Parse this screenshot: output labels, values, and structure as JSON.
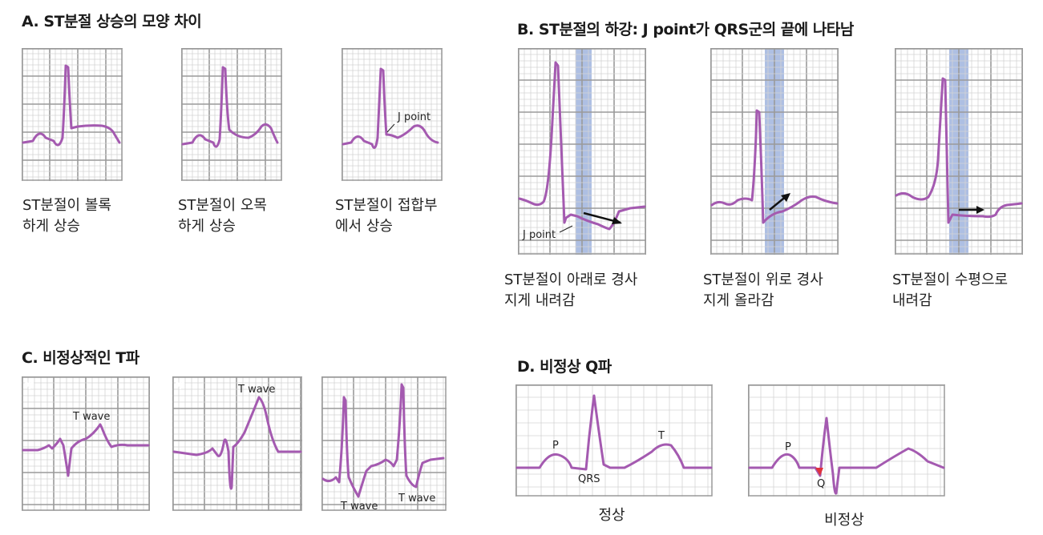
{
  "sectionA": {
    "title": "A. ST분절 상승의 모양 차이",
    "captions": [
      {
        "line1": "ST분절이 볼록",
        "line2": "하게 상승"
      },
      {
        "line1": "ST분절이 오목",
        "line2": "하게 상승"
      },
      {
        "line1": "ST분절이 접합부",
        "line2": "에서 상승"
      }
    ],
    "j_point_label": "J point"
  },
  "sectionB": {
    "title": "B. ST분절의 하강: J point가 QRS군의 끝에 나타남",
    "captions": [
      {
        "line1": "ST분절이 아래로 경사",
        "line2": "지게 내려감"
      },
      {
        "line1": "ST분절이 위로 경사",
        "line2": "지게 올라감"
      },
      {
        "line1": "ST분절이 수평으로",
        "line2": "내려감"
      }
    ],
    "j_point_label": "J point"
  },
  "sectionC": {
    "title": "C. 비정상적인 T파",
    "labels": [
      "T wave",
      "T wave",
      "T wave",
      "T wave"
    ]
  },
  "sectionD": {
    "title": "D. 비정상 Q파",
    "normal": {
      "caption": "정상",
      "p": "P",
      "qrs": "QRS",
      "t": "T"
    },
    "abnormal": {
      "caption": "비정상",
      "p": "P",
      "q": "Q"
    }
  },
  "colors": {
    "trace": "#a45ab0",
    "grid_major": "#9a9a9a",
    "grid_minor": "#d4d4d4",
    "highlight": "#aebfe3",
    "q_marker": "#e0323c"
  }
}
